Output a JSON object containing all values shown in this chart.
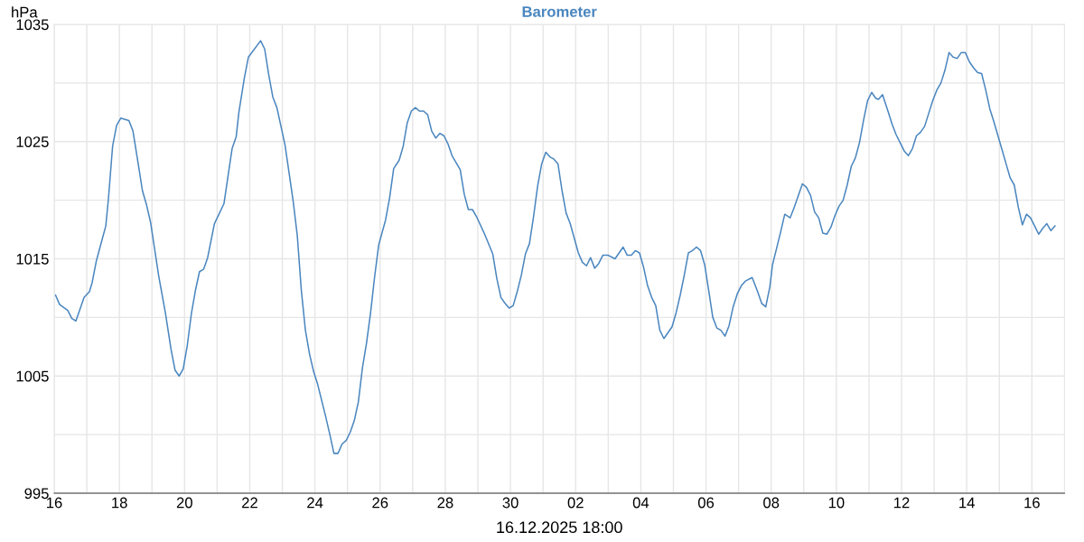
{
  "chart_data": {
    "type": "line",
    "title": "Barometer",
    "xlabel": "16.12.2025 18:00",
    "ylabel": "hPa",
    "xlim": [
      "2025-11-16",
      "2025-12-17"
    ],
    "xticks": [
      {
        "value": "2025-11-16",
        "label": "16"
      },
      {
        "value": "2025-11-17",
        "label": null
      },
      {
        "value": "2025-11-18",
        "label": "18"
      },
      {
        "value": "2025-11-19",
        "label": null
      },
      {
        "value": "2025-11-20",
        "label": "20"
      },
      {
        "value": "2025-11-21",
        "label": null
      },
      {
        "value": "2025-11-22",
        "label": "22"
      },
      {
        "value": "2025-11-23",
        "label": null
      },
      {
        "value": "2025-11-24",
        "label": "24"
      },
      {
        "value": "2025-11-25",
        "label": null
      },
      {
        "value": "2025-11-26",
        "label": "26"
      },
      {
        "value": "2025-11-27",
        "label": null
      },
      {
        "value": "2025-11-28",
        "label": "28"
      },
      {
        "value": "2025-11-29",
        "label": null
      },
      {
        "value": "2025-11-30",
        "label": "30"
      },
      {
        "value": "2025-12-01",
        "label": null
      },
      {
        "value": "2025-12-02",
        "label": "02"
      },
      {
        "value": "2025-12-03",
        "label": null
      },
      {
        "value": "2025-12-04",
        "label": "04"
      },
      {
        "value": "2025-12-05",
        "label": null
      },
      {
        "value": "2025-12-06",
        "label": "06"
      },
      {
        "value": "2025-12-07",
        "label": null
      },
      {
        "value": "2025-12-08",
        "label": "08"
      },
      {
        "value": "2025-12-09",
        "label": null
      },
      {
        "value": "2025-12-10",
        "label": "10"
      },
      {
        "value": "2025-12-11",
        "label": null
      },
      {
        "value": "2025-12-12",
        "label": "12"
      },
      {
        "value": "2025-12-13",
        "label": null
      },
      {
        "value": "2025-12-14",
        "label": "14"
      },
      {
        "value": "2025-12-15",
        "label": null
      },
      {
        "value": "2025-12-16",
        "label": "16"
      }
    ],
    "ylim": [
      995,
      1035
    ],
    "yticks": [
      995,
      {
        "value": 1000,
        "label": null
      },
      1005,
      {
        "value": 1010,
        "label": null
      },
      1015,
      {
        "value": 1020,
        "label": null
      },
      1025,
      {
        "value": 1030,
        "label": null
      },
      1035
    ],
    "grid": true,
    "marker": "none",
    "line_style": "solid",
    "x": [
      "2025-11-16T01:00",
      "2025-11-16T04:00",
      "2025-11-16T10:00",
      "2025-11-16T13:00",
      "2025-11-16T16:00",
      "2025-11-16T22:00",
      "2025-11-17T02:00",
      "2025-11-17T04:00",
      "2025-11-17T07:00",
      "2025-11-17T10:00",
      "2025-11-17T14:00",
      "2025-11-17T16:00",
      "2025-11-17T19:00",
      "2025-11-17T22:00",
      "2025-11-18T01:00",
      "2025-11-18T07:00",
      "2025-11-18T10:00",
      "2025-11-18T14:00",
      "2025-11-18T17:00",
      "2025-11-18T20:00",
      "2025-11-18T23:00",
      "2025-11-19T02:00",
      "2025-11-19T05:00",
      "2025-11-19T10:00",
      "2025-11-19T14:00",
      "2025-11-19T17:00",
      "2025-11-19T20:00",
      "2025-11-19T23:00",
      "2025-11-20T02:00",
      "2025-11-20T05:00",
      "2025-11-20T08:00",
      "2025-11-20T11:00",
      "2025-11-20T14:00",
      "2025-11-20T17:00",
      "2025-11-20T22:00",
      "2025-11-21T05:00",
      "2025-11-21T11:00",
      "2025-11-21T14:00",
      "2025-11-21T16:00",
      "2025-11-21T20:00",
      "2025-11-21T23:00",
      "2025-11-22T08:00",
      "2025-11-22T11:00",
      "2025-11-22T14:00",
      "2025-11-22T17:00",
      "2025-11-22T20:00",
      "2025-11-23T02:00",
      "2025-11-23T08:00",
      "2025-11-23T11:00",
      "2025-11-23T14:00",
      "2025-11-23T17:00",
      "2025-11-23T20:00",
      "2025-11-23T23:00",
      "2025-11-24T02:00",
      "2025-11-24T08:00",
      "2025-11-24T11:00",
      "2025-11-24T14:00",
      "2025-11-24T17:00",
      "2025-11-24T20:00",
      "2025-11-24T23:00",
      "2025-11-25T02:00",
      "2025-11-25T05:00",
      "2025-11-25T08:00",
      "2025-11-25T11:00",
      "2025-11-25T14:00",
      "2025-11-25T17:00",
      "2025-11-25T20:00",
      "2025-11-25T23:00",
      "2025-11-26T04:00",
      "2025-11-26T07:00",
      "2025-11-26T10:00",
      "2025-11-26T14:00",
      "2025-11-26T17:00",
      "2025-11-26T20:00",
      "2025-11-26T23:00",
      "2025-11-27T02:00",
      "2025-11-27T05:00",
      "2025-11-27T08:00",
      "2025-11-27T11:00",
      "2025-11-27T14:00",
      "2025-11-27T17:00",
      "2025-11-27T20:00",
      "2025-11-27T23:00",
      "2025-11-28T02:00",
      "2025-11-28T05:00",
      "2025-11-28T08:00",
      "2025-11-28T11:00",
      "2025-11-28T14:00",
      "2025-11-28T17:00",
      "2025-11-28T20:00",
      "2025-11-28T23:00",
      "2025-11-29T05:00",
      "2025-11-29T11:00",
      "2025-11-29T14:00",
      "2025-11-29T17:00",
      "2025-11-29T20:00",
      "2025-11-29T23:00",
      "2025-11-30T02:00",
      "2025-11-30T05:00",
      "2025-11-30T08:00",
      "2025-11-30T11:00",
      "2025-11-30T14:00",
      "2025-11-30T17:00",
      "2025-11-30T20:00",
      "2025-11-30T23:00",
      "2025-12-01T02:00",
      "2025-12-01T05:00",
      "2025-12-01T08:00",
      "2025-12-01T11:00",
      "2025-12-01T14:00",
      "2025-12-01T17:00",
      "2025-12-01T20:00",
      "2025-12-02T02:00",
      "2025-12-02T05:00",
      "2025-12-02T08:00",
      "2025-12-02T11:00",
      "2025-12-02T14:00",
      "2025-12-02T17:00",
      "2025-12-02T20:00",
      "2025-12-03T00:00",
      "2025-12-03T05:00",
      "2025-12-03T08:00",
      "2025-12-03T11:00",
      "2025-12-03T14:00",
      "2025-12-03T17:00",
      "2025-12-03T20:00",
      "2025-12-03T23:00",
      "2025-12-04T02:00",
      "2025-12-04T05:00",
      "2025-12-04T08:00",
      "2025-12-04T11:00",
      "2025-12-04T14:00",
      "2025-12-04T17:00",
      "2025-12-04T20:00",
      "2025-12-04T23:00",
      "2025-12-05T02:00",
      "2025-12-05T05:00",
      "2025-12-05T08:00",
      "2025-12-05T11:00",
      "2025-12-05T14:00",
      "2025-12-05T17:00",
      "2025-12-05T20:00",
      "2025-12-05T23:00",
      "2025-12-06T02:00",
      "2025-12-06T05:00",
      "2025-12-06T08:00",
      "2025-12-06T11:00",
      "2025-12-06T14:00",
      "2025-12-06T17:00",
      "2025-12-06T20:00",
      "2025-12-06T23:00",
      "2025-12-07T02:00",
      "2025-12-07T05:00",
      "2025-12-07T10:00",
      "2025-12-07T14:00",
      "2025-12-07T17:00",
      "2025-12-07T20:00",
      "2025-12-07T23:00",
      "2025-12-08T01:00",
      "2025-12-08T04:00",
      "2025-12-08T07:00",
      "2025-12-08T10:00",
      "2025-12-08T14:00",
      "2025-12-08T17:00",
      "2025-12-08T23:00",
      "2025-12-09T02:00",
      "2025-12-09T05:00",
      "2025-12-09T08:00",
      "2025-12-09T11:00",
      "2025-12-09T14:00",
      "2025-12-09T17:00",
      "2025-12-09T20:00",
      "2025-12-09T23:00",
      "2025-12-10T02:00",
      "2025-12-10T05:00",
      "2025-12-10T08:00",
      "2025-12-10T11:00",
      "2025-12-10T14:00",
      "2025-12-10T17:00",
      "2025-12-10T20:00",
      "2025-12-10T23:00",
      "2025-12-11T02:00",
      "2025-12-11T05:00",
      "2025-12-11T07:00",
      "2025-12-11T10:00",
      "2025-12-11T14:00",
      "2025-12-11T17:00",
      "2025-12-11T20:00",
      "2025-12-11T23:00",
      "2025-12-12T02:00",
      "2025-12-12T05:00",
      "2025-12-12T08:00",
      "2025-12-12T11:00",
      "2025-12-12T14:00",
      "2025-12-12T17:00",
      "2025-12-12T20:00",
      "2025-12-12T23:00",
      "2025-12-13T02:00",
      "2025-12-13T05:00",
      "2025-12-13T08:00",
      "2025-12-13T11:00",
      "2025-12-13T14:00",
      "2025-12-13T17:00",
      "2025-12-13T20:00",
      "2025-12-13T23:00",
      "2025-12-14T02:00",
      "2025-12-14T05:00",
      "2025-12-14T08:00",
      "2025-12-14T11:00",
      "2025-12-14T14:00",
      "2025-12-14T17:00",
      "2025-12-14T20:00",
      "2025-12-14T23:00",
      "2025-12-15T02:00",
      "2025-12-15T05:00",
      "2025-12-15T08:00",
      "2025-12-15T11:00",
      "2025-12-15T14:00",
      "2025-12-15T17:00",
      "2025-12-15T20:00",
      "2025-12-15T23:00",
      "2025-12-16T02:00",
      "2025-12-16T05:00",
      "2025-12-16T08:00",
      "2025-12-16T11:00",
      "2025-12-16T14:00",
      "2025-12-16T17:00"
    ],
    "series": [
      {
        "color": "#4a86bf",
        "values": [
          1011.9,
          1011.1,
          1010.6,
          1009.9,
          1009.7,
          1011.7,
          1012.2,
          1013.0,
          1014.8,
          1016.1,
          1017.8,
          1020.2,
          1024.6,
          1026.4,
          1027.0,
          1026.8,
          1025.9,
          1023.0,
          1020.8,
          1019.6,
          1018.1,
          1015.8,
          1013.5,
          1010.3,
          1007.3,
          1005.5,
          1005.0,
          1005.6,
          1007.6,
          1010.3,
          1012.3,
          1013.9,
          1014.1,
          1015.1,
          1018.0,
          1019.7,
          1024.4,
          1025.4,
          1027.5,
          1030.4,
          1032.2,
          1033.6,
          1032.9,
          1030.7,
          1028.8,
          1027.9,
          1024.7,
          1019.9,
          1017.0,
          1012.3,
          1008.9,
          1006.9,
          1005.4,
          1004.3,
          1001.5,
          1000.0,
          998.4,
          998.4,
          999.2,
          999.5,
          1000.2,
          1001.2,
          1002.8,
          1005.7,
          1007.8,
          1010.4,
          1013.5,
          1016.2,
          1018.3,
          1020.2,
          1022.7,
          1023.4,
          1024.6,
          1026.6,
          1027.6,
          1027.9,
          1027.6,
          1027.6,
          1027.3,
          1025.9,
          1025.3,
          1025.7,
          1025.5,
          1024.8,
          1023.8,
          1023.2,
          1022.6,
          1020.5,
          1019.2,
          1019.2,
          1018.6,
          1017.1,
          1015.4,
          1013.3,
          1011.7,
          1011.2,
          1010.8,
          1011.0,
          1012.2,
          1013.6,
          1015.4,
          1016.3,
          1018.6,
          1021.2,
          1023.1,
          1024.1,
          1023.7,
          1023.5,
          1023.1,
          1020.8,
          1018.9,
          1018.0,
          1015.5,
          1014.7,
          1014.4,
          1015.1,
          1014.2,
          1014.6,
          1015.3,
          1015.3,
          1015.0,
          1015.5,
          1016.0,
          1015.3,
          1015.3,
          1015.7,
          1015.5,
          1014.3,
          1012.7,
          1011.7,
          1011.0,
          1008.9,
          1008.2,
          1008.7,
          1009.2,
          1010.4,
          1011.9,
          1013.6,
          1015.5,
          1015.7,
          1016.0,
          1015.7,
          1014.5,
          1012.3,
          1010.0,
          1009.1,
          1008.9,
          1008.4,
          1009.3,
          1010.9,
          1012.0,
          1012.7,
          1013.1,
          1013.4,
          1012.2,
          1011.2,
          1010.9,
          1012.6,
          1014.5,
          1015.9,
          1017.3,
          1018.8,
          1018.5,
          1019.4,
          1021.4,
          1021.1,
          1020.4,
          1019.0,
          1018.5,
          1017.2,
          1017.1,
          1017.7,
          1018.7,
          1019.5,
          1020.0,
          1021.3,
          1022.9,
          1023.6,
          1024.9,
          1026.8,
          1028.5,
          1029.2,
          1028.7,
          1028.6,
          1029.0,
          1027.6,
          1026.5,
          1025.6,
          1024.9,
          1024.2,
          1023.8,
          1024.4,
          1025.5,
          1025.8,
          1026.3,
          1027.4,
          1028.5,
          1029.4,
          1030.0,
          1031.1,
          1032.6,
          1032.2,
          1032.1,
          1032.6,
          1032.6,
          1031.8,
          1031.3,
          1030.9,
          1030.8,
          1029.4,
          1027.8,
          1026.7,
          1025.5,
          1024.3,
          1023.1,
          1021.9,
          1021.3,
          1019.4,
          1017.9,
          1018.8,
          1018.5,
          1017.8,
          1017.1,
          1017.6,
          1018.0,
          1017.4,
          1017.8
        ]
      }
    ]
  }
}
